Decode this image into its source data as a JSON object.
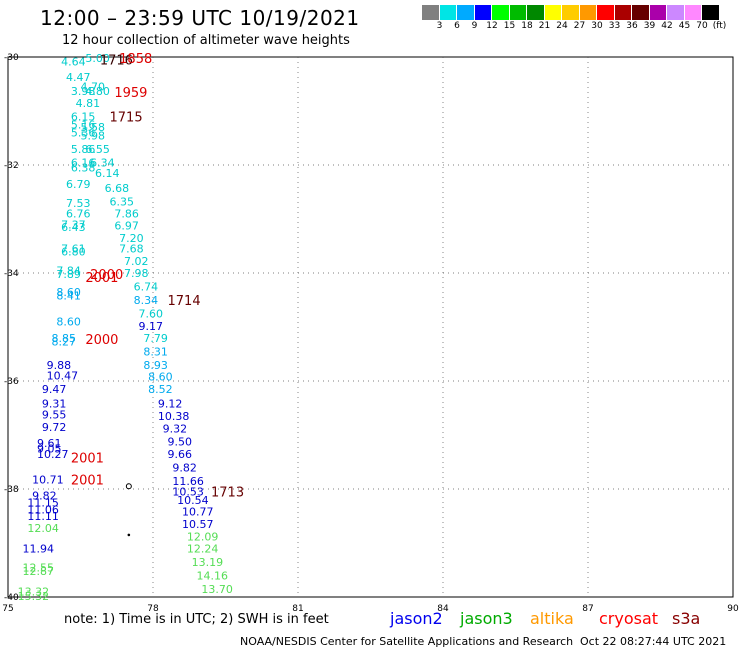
{
  "header": {
    "title": "12:00 – 23:59 UTC 10/19/2021",
    "subtitle": "12 hour collection of altimeter wave heights"
  },
  "colorbar": {
    "colors": [
      "#808080",
      "#00e5e5",
      "#00aaff",
      "#0000ff",
      "#00ff00",
      "#00bb00",
      "#008800",
      "#ffff00",
      "#ffcc00",
      "#ff9900",
      "#ff0000",
      "#aa0000",
      "#660000",
      "#aa00aa",
      "#cc88ff",
      "#ff88ff",
      "#000000"
    ],
    "labels": [
      "3",
      "6",
      "9",
      "12",
      "15",
      "18",
      "21",
      "24",
      "27",
      "30",
      "33",
      "36",
      "39",
      "42",
      "45",
      "70",
      "(ft)"
    ]
  },
  "axes": {
    "lat_labels": [
      "-30",
      "-32",
      "-34",
      "-36",
      "-38",
      "-40"
    ],
    "lat_values": [
      -30,
      -32,
      -34,
      -36,
      -38,
      -40
    ],
    "lon_labels": [
      "75",
      "78",
      "81",
      "84",
      "87",
      "90"
    ],
    "lon_values": [
      75,
      78,
      81,
      84,
      87,
      90
    ]
  },
  "map_data": {
    "lon_range": [
      75,
      90
    ],
    "lat_range": [
      -40,
      -30
    ],
    "wave_labels": [
      {
        "text": "4.64",
        "lon": 76.1,
        "lat": -30.08,
        "color": "#00cccc"
      },
      {
        "text": "5.00",
        "lon": 76.6,
        "lat": -30.02,
        "color": "#00cccc"
      },
      {
        "text": "4.47",
        "lon": 76.2,
        "lat": -30.37,
        "color": "#00cccc"
      },
      {
        "text": "4.70",
        "lon": 76.5,
        "lat": -30.55,
        "color": "#00cccc"
      },
      {
        "text": "3.98",
        "lon": 76.3,
        "lat": -30.63,
        "color": "#00cccc"
      },
      {
        "text": "4.80",
        "lon": 76.6,
        "lat": -30.63,
        "color": "#00cccc"
      },
      {
        "text": "4.81",
        "lon": 76.4,
        "lat": -30.85,
        "color": "#00cccc"
      },
      {
        "text": "6.15",
        "lon": 76.3,
        "lat": -31.1,
        "color": "#00cccc"
      },
      {
        "text": "5.16",
        "lon": 76.3,
        "lat": -31.25,
        "color": "#00cccc"
      },
      {
        "text": "5.58",
        "lon": 76.5,
        "lat": -31.3,
        "color": "#00cccc"
      },
      {
        "text": "5.36",
        "lon": 76.3,
        "lat": -31.4,
        "color": "#00cccc"
      },
      {
        "text": "5.98",
        "lon": 76.5,
        "lat": -31.45,
        "color": "#00cccc"
      },
      {
        "text": "5.86",
        "lon": 76.3,
        "lat": -31.7,
        "color": "#00cccc"
      },
      {
        "text": "6.55",
        "lon": 76.6,
        "lat": -31.7,
        "color": "#00cccc"
      },
      {
        "text": "6.16",
        "lon": 76.3,
        "lat": -31.95,
        "color": "#00cccc"
      },
      {
        "text": "6.34",
        "lon": 76.7,
        "lat": -31.95,
        "color": "#00cccc"
      },
      {
        "text": "6.38",
        "lon": 76.3,
        "lat": -32.05,
        "color": "#00cccc"
      },
      {
        "text": "6.14",
        "lon": 76.8,
        "lat": -32.15,
        "color": "#00cccc"
      },
      {
        "text": "6.79",
        "lon": 76.2,
        "lat": -32.35,
        "color": "#00cccc"
      },
      {
        "text": "6.68",
        "lon": 77.0,
        "lat": -32.43,
        "color": "#00cccc"
      },
      {
        "text": "7.53",
        "lon": 76.2,
        "lat": -32.7,
        "color": "#00cccc"
      },
      {
        "text": "6.35",
        "lon": 77.1,
        "lat": -32.68,
        "color": "#00cccc"
      },
      {
        "text": "6.76",
        "lon": 76.2,
        "lat": -32.9,
        "color": "#00cccc"
      },
      {
        "text": "7.86",
        "lon": 77.2,
        "lat": -32.9,
        "color": "#00cccc"
      },
      {
        "text": "7.37",
        "lon": 76.1,
        "lat": -33.1,
        "color": "#00cccc"
      },
      {
        "text": "6.43",
        "lon": 76.1,
        "lat": -33.15,
        "color": "#00cccc"
      },
      {
        "text": "6.97",
        "lon": 77.2,
        "lat": -33.12,
        "color": "#00cccc"
      },
      {
        "text": "7.20",
        "lon": 77.3,
        "lat": -33.35,
        "color": "#00cccc"
      },
      {
        "text": "7.61",
        "lon": 76.1,
        "lat": -33.55,
        "color": "#00cccc"
      },
      {
        "text": "6.80",
        "lon": 76.1,
        "lat": -33.6,
        "color": "#00cccc"
      },
      {
        "text": "7.68",
        "lon": 77.3,
        "lat": -33.55,
        "color": "#00cccc"
      },
      {
        "text": "7.02",
        "lon": 77.4,
        "lat": -33.78,
        "color": "#00cccc"
      },
      {
        "text": "7.84",
        "lon": 76.0,
        "lat": -33.95,
        "color": "#00cccc"
      },
      {
        "text": "7.89",
        "lon": 76.0,
        "lat": -34.02,
        "color": "#00cccc"
      },
      {
        "text": "7.98",
        "lon": 77.4,
        "lat": -34.0,
        "color": "#00cccc"
      },
      {
        "text": "6.74",
        "lon": 77.6,
        "lat": -34.25,
        "color": "#00cccc"
      },
      {
        "text": "8.60",
        "lon": 76.0,
        "lat": -34.35,
        "color": "#00aaee"
      },
      {
        "text": "8.41",
        "lon": 76.0,
        "lat": -34.42,
        "color": "#00aaee"
      },
      {
        "text": "8.34",
        "lon": 77.6,
        "lat": -34.5,
        "color": "#00aaee"
      },
      {
        "text": "7.60",
        "lon": 77.7,
        "lat": -34.75,
        "color": "#00cccc"
      },
      {
        "text": "8.60",
        "lon": 76.0,
        "lat": -34.9,
        "color": "#00aaee"
      },
      {
        "text": "9.17",
        "lon": 77.7,
        "lat": -34.98,
        "color": "#0000cc"
      },
      {
        "text": "8.85",
        "lon": 75.9,
        "lat": -35.2,
        "color": "#00aaee"
      },
      {
        "text": "8.27",
        "lon": 75.9,
        "lat": -35.27,
        "color": "#00aaee"
      },
      {
        "text": "7.79",
        "lon": 77.8,
        "lat": -35.2,
        "color": "#00cccc"
      },
      {
        "text": "8.31",
        "lon": 77.8,
        "lat": -35.45,
        "color": "#00aaee"
      },
      {
        "text": "8.93",
        "lon": 77.8,
        "lat": -35.7,
        "color": "#00aaee"
      },
      {
        "text": "9.88",
        "lon": 75.8,
        "lat": -35.7,
        "color": "#0000cc"
      },
      {
        "text": "10.47",
        "lon": 75.8,
        "lat": -35.9,
        "color": "#0000cc"
      },
      {
        "text": "8.60",
        "lon": 77.9,
        "lat": -35.92,
        "color": "#00aaee"
      },
      {
        "text": "9.47",
        "lon": 75.7,
        "lat": -36.15,
        "color": "#0000cc"
      },
      {
        "text": "8.52",
        "lon": 77.9,
        "lat": -36.15,
        "color": "#00aaee"
      },
      {
        "text": "9.31",
        "lon": 75.7,
        "lat": -36.42,
        "color": "#0000cc"
      },
      {
        "text": "9.12",
        "lon": 78.1,
        "lat": -36.42,
        "color": "#0000cc"
      },
      {
        "text": "9.55",
        "lon": 75.7,
        "lat": -36.62,
        "color": "#0000cc"
      },
      {
        "text": "10.38",
        "lon": 78.1,
        "lat": -36.65,
        "color": "#0000cc"
      },
      {
        "text": "9.72",
        "lon": 75.7,
        "lat": -36.85,
        "color": "#0000cc"
      },
      {
        "text": "9.32",
        "lon": 78.2,
        "lat": -36.88,
        "color": "#0000cc"
      },
      {
        "text": "9.61",
        "lon": 75.6,
        "lat": -37.15,
        "color": "#0000cc"
      },
      {
        "text": "9.05",
        "lon": 75.6,
        "lat": -37.25,
        "color": "#0000cc"
      },
      {
        "text": "9.50",
        "lon": 78.3,
        "lat": -37.12,
        "color": "#0000cc"
      },
      {
        "text": "10.27",
        "lon": 75.6,
        "lat": -37.35,
        "color": "#0000cc"
      },
      {
        "text": "9.66",
        "lon": 78.3,
        "lat": -37.35,
        "color": "#0000cc"
      },
      {
        "text": "9.82",
        "lon": 78.4,
        "lat": -37.6,
        "color": "#0000cc"
      },
      {
        "text": "10.71",
        "lon": 75.5,
        "lat": -37.82,
        "color": "#0000cc"
      },
      {
        "text": "11.66",
        "lon": 78.4,
        "lat": -37.85,
        "color": "#0000cc"
      },
      {
        "text": "10.53",
        "lon": 78.4,
        "lat": -38.05,
        "color": "#0000cc"
      },
      {
        "text": "9.82",
        "lon": 75.5,
        "lat": -38.12,
        "color": "#0000cc"
      },
      {
        "text": "10.54",
        "lon": 78.5,
        "lat": -38.2,
        "color": "#0000cc"
      },
      {
        "text": "11.15",
        "lon": 75.4,
        "lat": -38.25,
        "color": "#0000cc"
      },
      {
        "text": "11.06",
        "lon": 75.4,
        "lat": -38.38,
        "color": "#0000cc"
      },
      {
        "text": "10.77",
        "lon": 78.6,
        "lat": -38.42,
        "color": "#0000cc"
      },
      {
        "text": "11.11",
        "lon": 75.4,
        "lat": -38.5,
        "color": "#0000cc"
      },
      {
        "text": "10.57",
        "lon": 78.6,
        "lat": -38.65,
        "color": "#0000cc"
      },
      {
        "text": "12.04",
        "lon": 75.4,
        "lat": -38.72,
        "color": "#55dd55"
      },
      {
        "text": "12.09",
        "lon": 78.7,
        "lat": -38.88,
        "color": "#55dd55"
      },
      {
        "text": "11.94",
        "lon": 75.3,
        "lat": -39.1,
        "color": "#0000cc"
      },
      {
        "text": "12.24",
        "lon": 78.7,
        "lat": -39.1,
        "color": "#55dd55"
      },
      {
        "text": "13.19",
        "lon": 78.8,
        "lat": -39.35,
        "color": "#55dd55"
      },
      {
        "text": "12.55",
        "lon": 75.3,
        "lat": -39.45,
        "color": "#55dd55"
      },
      {
        "text": "12.87",
        "lon": 75.3,
        "lat": -39.52,
        "color": "#55dd55"
      },
      {
        "text": "14.16",
        "lon": 78.9,
        "lat": -39.6,
        "color": "#55dd55"
      },
      {
        "text": "13.70",
        "lon": 79.0,
        "lat": -39.85,
        "color": "#55dd55"
      },
      {
        "text": "13.32",
        "lon": 75.2,
        "lat": -39.9,
        "color": "#55dd55"
      },
      {
        "text": "15.32",
        "lon": 75.2,
        "lat": -39.98,
        "color": "#55dd55"
      }
    ],
    "time_labels": [
      {
        "text": "1716",
        "lon": 76.9,
        "lat": -30.05,
        "color": "#330000",
        "size": 13
      },
      {
        "text": "1858",
        "lon": 77.3,
        "lat": -30.02,
        "color": "#dd0000",
        "size": 13
      },
      {
        "text": "1959",
        "lon": 77.2,
        "lat": -30.65,
        "color": "#dd0000",
        "size": 13
      },
      {
        "text": "1715",
        "lon": 77.1,
        "lat": -31.1,
        "color": "#660000",
        "size": 13
      },
      {
        "text": "2000",
        "lon": 76.7,
        "lat": -34.02,
        "color": "#dd0000",
        "size": 13
      },
      {
        "text": "2001",
        "lon": 76.6,
        "lat": -34.07,
        "color": "#dd0000",
        "size": 13
      },
      {
        "text": "1714",
        "lon": 78.3,
        "lat": -34.5,
        "color": "#660000",
        "size": 13
      },
      {
        "text": "2000",
        "lon": 76.6,
        "lat": -35.22,
        "color": "#dd0000",
        "size": 13
      },
      {
        "text": "2001",
        "lon": 76.3,
        "lat": -37.42,
        "color": "#dd0000",
        "size": 13
      },
      {
        "text": "2001",
        "lon": 76.3,
        "lat": -37.82,
        "color": "#dd0000",
        "size": 13
      },
      {
        "text": "1713",
        "lon": 79.2,
        "lat": -38.05,
        "color": "#660000",
        "size": 13
      }
    ],
    "markers": [
      {
        "lon": 77.5,
        "lat": -37.95,
        "type": "ring"
      },
      {
        "lon": 77.5,
        "lat": -38.85,
        "type": "dot"
      }
    ]
  },
  "note": "note:  1) Time is in UTC;  2) SWH is in feet",
  "satellites": [
    {
      "name": "jason2",
      "color": "#0000ee"
    },
    {
      "name": "jason3",
      "color": "#00aa00"
    },
    {
      "name": "altika",
      "color": "#ff9900"
    },
    {
      "name": "cryosat",
      "color": "#ff0000"
    },
    {
      "name": "s3a",
      "color": "#880000"
    }
  ],
  "footer": {
    "source": "NOAA/NESDIS Center for Satellite Applications and Research",
    "date": "Oct 22 08:27:44 UTC 2021"
  }
}
